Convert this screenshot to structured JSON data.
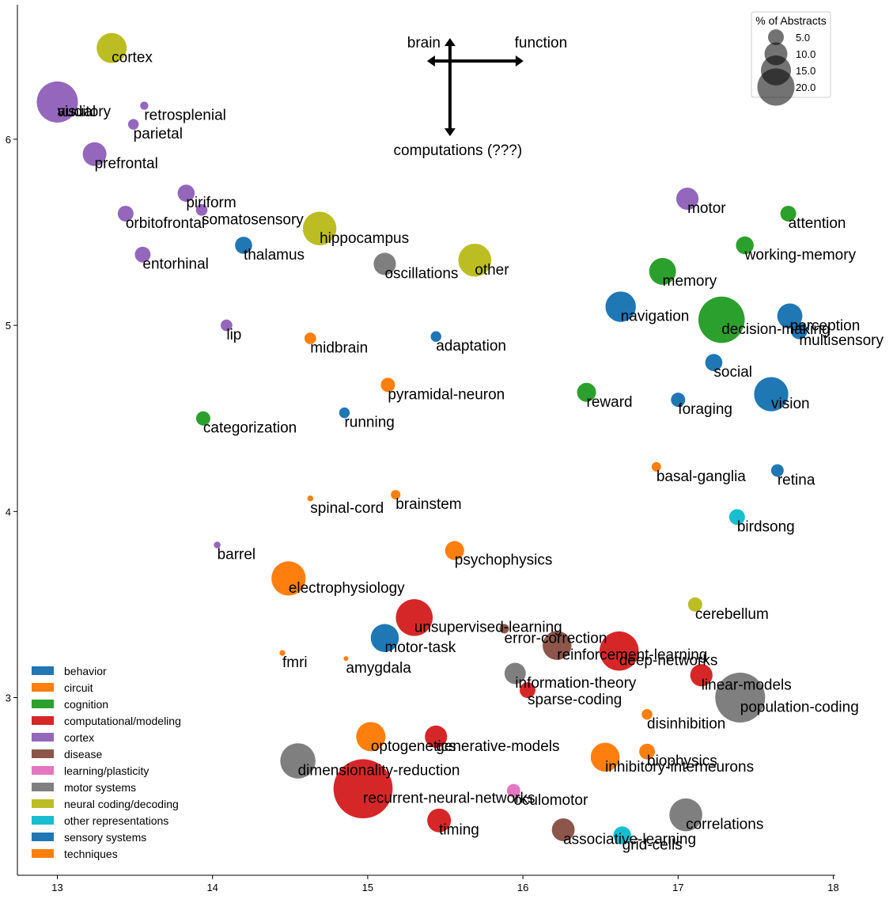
{
  "chart_data": {
    "type": "scatter",
    "title": "",
    "xlabel": "",
    "ylabel": "",
    "xlim": [
      12.75,
      18
    ],
    "ylim": [
      2.07,
      7.15
    ],
    "xticks": [
      13,
      14,
      15,
      16,
      17,
      18
    ],
    "yticks": [
      3,
      4,
      5,
      6
    ],
    "grid": false,
    "colors": {
      "behavior": "#1f77b4",
      "circuit": "#ff7f0e",
      "cognition": "#2ca02c",
      "computational/modeling": "#d62728",
      "cortex": "#9467bd",
      "disease": "#8c564b",
      "learning/plasticity": "#e377c2",
      "motor systems": "#7f7f7f",
      "neural coding/decoding": "#bcbd22",
      "other representations": "#17becf",
      "sensory systems": "#1f77b4",
      "techniques": "#ff7f0e"
    },
    "category_legend": {
      "placement": "lower-left",
      "entries": [
        "behavior",
        "circuit",
        "cognition",
        "computational/modeling",
        "cortex",
        "disease",
        "learning/plasticity",
        "motor systems",
        "neural coding/decoding",
        "other representations",
        "sensory systems",
        "techniques"
      ]
    },
    "size_legend": {
      "title": "% of Abstracts",
      "placement": "top-right",
      "values": [
        5.0,
        10.0,
        15.0,
        20.0
      ],
      "labels": [
        "5.0",
        "10.0",
        "15.0",
        "20.0"
      ]
    },
    "annotation": {
      "up": "brain",
      "right": "function",
      "down": "computations (???)",
      "center": [
        15.53,
        6.42
      ]
    },
    "points": [
      {
        "label": "cortex",
        "x": 13.35,
        "y": 6.49,
        "pct": 4.0,
        "category": "neural coding/decoding"
      },
      {
        "label": "visual",
        "x": 13.0,
        "y": 6.2,
        "pct": 7.5,
        "category": "cortex"
      },
      {
        "label": "auditory",
        "x": 13.0,
        "y": 6.2,
        "pct": 0.0,
        "category": "cortex"
      },
      {
        "label": "retrosplenial",
        "x": 13.56,
        "y": 6.18,
        "pct": 0.3,
        "category": "cortex"
      },
      {
        "label": "parietal",
        "x": 13.49,
        "y": 6.08,
        "pct": 0.5,
        "category": "cortex"
      },
      {
        "label": "prefrontal",
        "x": 13.24,
        "y": 5.92,
        "pct": 2.5,
        "category": "cortex"
      },
      {
        "label": "piriform",
        "x": 13.83,
        "y": 5.71,
        "pct": 1.3,
        "category": "cortex"
      },
      {
        "label": "orbitofrontal",
        "x": 13.44,
        "y": 5.6,
        "pct": 1.1,
        "category": "cortex"
      },
      {
        "label": "somatosensory",
        "x": 13.93,
        "y": 5.62,
        "pct": 0.6,
        "category": "cortex"
      },
      {
        "label": "entorhinal",
        "x": 13.55,
        "y": 5.38,
        "pct": 1.1,
        "category": "cortex"
      },
      {
        "label": "thalamus",
        "x": 14.2,
        "y": 5.43,
        "pct": 1.3,
        "category": "sensory systems"
      },
      {
        "label": "hippocampus",
        "x": 14.69,
        "y": 5.52,
        "pct": 5.0,
        "category": "neural coding/decoding"
      },
      {
        "label": "oscillations",
        "x": 15.11,
        "y": 5.33,
        "pct": 2.2,
        "category": "motor systems"
      },
      {
        "label": "other",
        "x": 15.69,
        "y": 5.35,
        "pct": 4.8,
        "category": "neural coding/decoding"
      },
      {
        "label": "motor",
        "x": 17.06,
        "y": 5.68,
        "pct": 2.2,
        "category": "cortex"
      },
      {
        "label": "attention",
        "x": 17.71,
        "y": 5.6,
        "pct": 1.1,
        "category": "cognition"
      },
      {
        "label": "working-memory",
        "x": 17.43,
        "y": 5.43,
        "pct": 1.4,
        "category": "cognition"
      },
      {
        "label": "memory",
        "x": 16.9,
        "y": 5.29,
        "pct": 3.2,
        "category": "cognition"
      },
      {
        "label": "navigation",
        "x": 16.63,
        "y": 5.1,
        "pct": 4.1,
        "category": "behavior"
      },
      {
        "label": "decision-making",
        "x": 17.28,
        "y": 5.03,
        "pct": 9.5,
        "category": "cognition"
      },
      {
        "label": "perception",
        "x": 17.72,
        "y": 5.05,
        "pct": 2.8,
        "category": "sensory systems"
      },
      {
        "label": "multisensory",
        "x": 17.78,
        "y": 4.97,
        "pct": 1.2,
        "category": "sensory systems"
      },
      {
        "label": "lip",
        "x": 14.09,
        "y": 5.0,
        "pct": 0.6,
        "category": "cortex"
      },
      {
        "label": "midbrain",
        "x": 14.63,
        "y": 4.93,
        "pct": 0.6,
        "category": "techniques"
      },
      {
        "label": "adaptation",
        "x": 15.44,
        "y": 4.94,
        "pct": 0.5,
        "category": "sensory systems"
      },
      {
        "label": "social",
        "x": 17.23,
        "y": 4.8,
        "pct": 1.3,
        "category": "behavior"
      },
      {
        "label": "pyramidal-neuron",
        "x": 15.13,
        "y": 4.68,
        "pct": 0.9,
        "category": "techniques"
      },
      {
        "label": "reward",
        "x": 16.41,
        "y": 4.64,
        "pct": 1.6,
        "category": "cognition"
      },
      {
        "label": "vision",
        "x": 17.6,
        "y": 4.63,
        "pct": 5.2,
        "category": "sensory systems"
      },
      {
        "label": "foraging",
        "x": 17.0,
        "y": 4.6,
        "pct": 0.9,
        "category": "behavior"
      },
      {
        "label": "categorization",
        "x": 13.94,
        "y": 4.5,
        "pct": 0.9,
        "category": "cognition"
      },
      {
        "label": "running",
        "x": 14.85,
        "y": 4.53,
        "pct": 0.5,
        "category": "behavior"
      },
      {
        "label": "basal-ganglia",
        "x": 16.86,
        "y": 4.24,
        "pct": 0.4,
        "category": "techniques"
      },
      {
        "label": "retina",
        "x": 17.64,
        "y": 4.22,
        "pct": 0.7,
        "category": "sensory systems"
      },
      {
        "label": "spinal-cord",
        "x": 14.63,
        "y": 4.07,
        "pct": 0.15,
        "category": "techniques"
      },
      {
        "label": "brainstem",
        "x": 15.18,
        "y": 4.09,
        "pct": 0.4,
        "category": "techniques"
      },
      {
        "label": "birdsong",
        "x": 17.38,
        "y": 3.97,
        "pct": 1.1,
        "category": "other representations"
      },
      {
        "label": "barrel",
        "x": 14.03,
        "y": 3.82,
        "pct": 0.2,
        "category": "cortex"
      },
      {
        "label": "psychophysics",
        "x": 15.56,
        "y": 3.79,
        "pct": 1.6,
        "category": "techniques"
      },
      {
        "label": "electrophysiology",
        "x": 14.49,
        "y": 3.64,
        "pct": 5.2,
        "category": "techniques"
      },
      {
        "label": "cerebellum",
        "x": 17.11,
        "y": 3.5,
        "pct": 0.9,
        "category": "neural coding/decoding"
      },
      {
        "label": "unsupervised-learning",
        "x": 15.3,
        "y": 3.43,
        "pct": 6.0,
        "category": "computational/modeling"
      },
      {
        "label": "error-correction",
        "x": 15.88,
        "y": 3.37,
        "pct": 0.4,
        "category": "disease"
      },
      {
        "label": "motor-task",
        "x": 15.11,
        "y": 3.32,
        "pct": 3.5,
        "category": "sensory systems"
      },
      {
        "label": "reinforcement-learning",
        "x": 16.22,
        "y": 3.28,
        "pct": 3.7,
        "category": "disease"
      },
      {
        "label": "deep-networks",
        "x": 16.62,
        "y": 3.25,
        "pct": 6.8,
        "category": "computational/modeling"
      },
      {
        "label": "fmri",
        "x": 14.45,
        "y": 3.24,
        "pct": 0.15,
        "category": "techniques"
      },
      {
        "label": "amygdala",
        "x": 14.86,
        "y": 3.21,
        "pct": 0.1,
        "category": "techniques"
      },
      {
        "label": "information-theory",
        "x": 15.95,
        "y": 3.13,
        "pct": 2.0,
        "category": "motor systems"
      },
      {
        "label": "linear-models",
        "x": 17.15,
        "y": 3.12,
        "pct": 2.2,
        "category": "computational/modeling"
      },
      {
        "label": "sparse-coding",
        "x": 16.03,
        "y": 3.04,
        "pct": 1.1,
        "category": "computational/modeling"
      },
      {
        "label": "population-coding",
        "x": 17.4,
        "y": 3.0,
        "pct": 11.0,
        "category": "motor systems"
      },
      {
        "label": "disinhibition",
        "x": 16.8,
        "y": 2.91,
        "pct": 0.5,
        "category": "techniques"
      },
      {
        "label": "optogenetics",
        "x": 15.02,
        "y": 2.79,
        "pct": 3.8,
        "category": "techniques"
      },
      {
        "label": "generative-models",
        "x": 15.44,
        "y": 2.79,
        "pct": 2.2,
        "category": "computational/modeling"
      },
      {
        "label": "biophysics",
        "x": 16.8,
        "y": 2.71,
        "pct": 1.1,
        "category": "techniques"
      },
      {
        "label": "inhibitory-interneurons",
        "x": 16.53,
        "y": 2.68,
        "pct": 3.7,
        "category": "techniques"
      },
      {
        "label": "dimensionality-reduction",
        "x": 14.55,
        "y": 2.66,
        "pct": 5.5,
        "category": "motor systems"
      },
      {
        "label": "recurrent-neural-networks",
        "x": 14.97,
        "y": 2.51,
        "pct": 15.5,
        "category": "computational/modeling"
      },
      {
        "label": "oculomotor",
        "x": 15.94,
        "y": 2.5,
        "pct": 0.8,
        "category": "learning/plasticity"
      },
      {
        "label": "timing",
        "x": 15.46,
        "y": 2.34,
        "pct": 2.5,
        "category": "computational/modeling"
      },
      {
        "label": "correlations",
        "x": 17.05,
        "y": 2.37,
        "pct": 4.8,
        "category": "motor systems"
      },
      {
        "label": "associative-learning",
        "x": 16.26,
        "y": 2.29,
        "pct": 2.3,
        "category": "disease"
      },
      {
        "label": "grid-cells",
        "x": 16.64,
        "y": 2.26,
        "pct": 1.4,
        "category": "other representations"
      }
    ]
  }
}
